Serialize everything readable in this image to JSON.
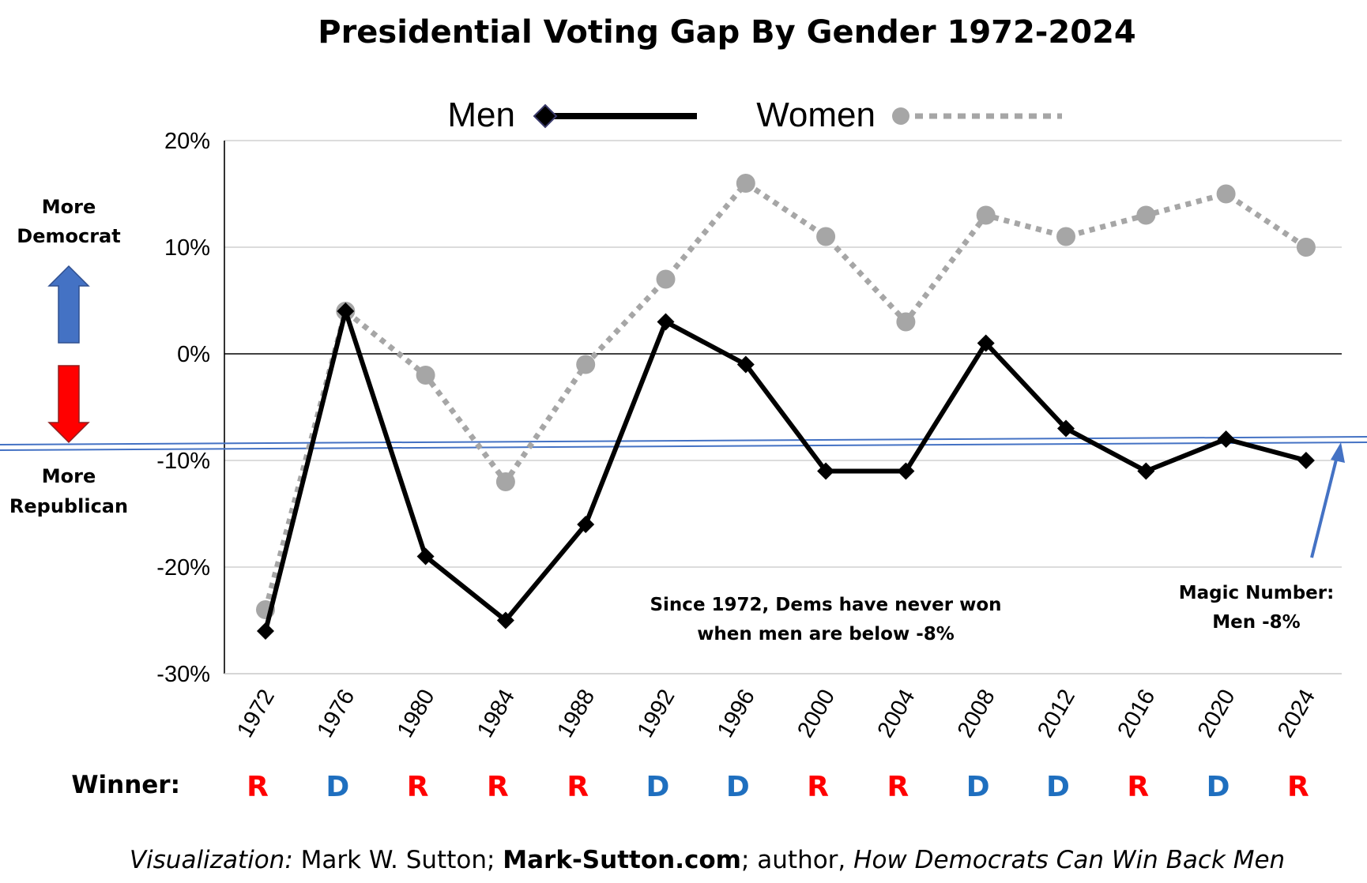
{
  "chart_data": {
    "type": "line",
    "title": "Presidential Voting Gap By Gender 1972-2024",
    "categories": [
      "1972",
      "1976",
      "1980",
      "1984",
      "1988",
      "1992",
      "1996",
      "2000",
      "2004",
      "2008",
      "2012",
      "2016",
      "2020",
      "2024"
    ],
    "series": [
      {
        "name": "Men",
        "values": [
          -26,
          4,
          -19,
          -25,
          -16,
          3,
          -1,
          -11,
          -11,
          1,
          -7,
          -11,
          -8,
          -10
        ],
        "color": "#000000",
        "style": "solid",
        "marker": "diamond"
      },
      {
        "name": "Women",
        "values": [
          -24,
          4,
          -2,
          -12,
          -1,
          7,
          16,
          11,
          3,
          13,
          11,
          13,
          15,
          10
        ],
        "color": "#a6a6a6",
        "style": "dotted",
        "marker": "circle"
      }
    ],
    "ylim": [
      -30,
      20
    ],
    "yticks": [
      "20%",
      "10%",
      "0%",
      "-10%",
      "-20%",
      "-30%"
    ],
    "ytick_values": [
      20,
      10,
      0,
      -10,
      -20,
      -30
    ],
    "grid": true,
    "legend_position": "top",
    "threshold": {
      "value": -8,
      "color": "#4472c4"
    },
    "side_labels": {
      "top_line1": "More",
      "top_line2": "Democrat",
      "bottom_line1": "More",
      "bottom_line2": "Republican"
    },
    "annotations": {
      "center_line1": "Since 1972, Dems have never won",
      "center_line2": "when men are below -8%",
      "magic_line1": "Magic Number:",
      "magic_line2": "Men -8%"
    },
    "winner_label": "Winner:",
    "winners": [
      "R",
      "D",
      "R",
      "R",
      "R",
      "D",
      "D",
      "R",
      "R",
      "D",
      "D",
      "R",
      "D",
      "R"
    ],
    "party_colors": {
      "R": "#ff0000",
      "D": "#1f6fbf"
    },
    "arrow_colors": {
      "up": "#4472c4",
      "down": "#ff0000"
    }
  },
  "credit": {
    "part1": "Visualization:",
    "part2": " Mark W. Sutton; ",
    "part3": "Mark-Sutton.com",
    "part4": "; author, ",
    "part5": "How Democrats Can Win Back Men"
  }
}
